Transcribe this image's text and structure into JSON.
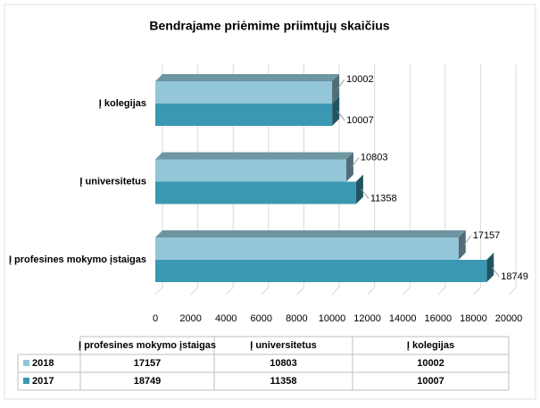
{
  "chart_data": {
    "type": "bar3d_horizontal",
    "title": "Bendrajame priėmime priimtųjų skaičius",
    "categories": [
      "Į profesines mokymo įstaigas",
      "Į universitetus",
      "Į kolegijas"
    ],
    "series": [
      {
        "name": "2018",
        "color": "#93c6d8",
        "values": [
          17157,
          10803,
          10002
        ]
      },
      {
        "name": "2017",
        "color": "#3b98b2",
        "values": [
          18749,
          11358,
          10007
        ]
      }
    ],
    "xlim": [
      0,
      20000
    ],
    "xticks": [
      0,
      2000,
      4000,
      6000,
      8000,
      10000,
      12000,
      14000,
      16000,
      18000,
      20000
    ],
    "grid": true,
    "data_table": true
  }
}
